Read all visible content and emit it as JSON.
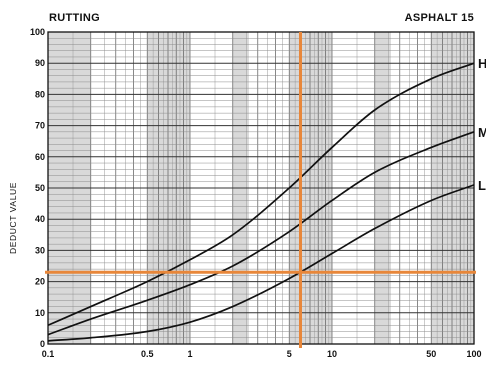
{
  "chart_data": {
    "type": "line",
    "title_left": "RUTTING",
    "title_right": "ASPHALT  15",
    "xlabel": "",
    "ylabel": "DEDUCT VALUE",
    "x_scale": "log",
    "xlim": [
      0.1,
      100
    ],
    "ylim": [
      0,
      100
    ],
    "x_ticks": [
      {
        "value": 0.1,
        "label": "0.1"
      },
      {
        "value": 0.5,
        "label": "0.5"
      },
      {
        "value": 1,
        "label": "1"
      },
      {
        "value": 5,
        "label": "5"
      },
      {
        "value": 10,
        "label": "10"
      },
      {
        "value": 50,
        "label": "50"
      },
      {
        "value": 100,
        "label": "100"
      }
    ],
    "y_ticks": [
      0,
      10,
      20,
      30,
      40,
      50,
      60,
      70,
      80,
      90,
      100
    ],
    "grid": true,
    "series": [
      {
        "name": "H",
        "color": "#111111",
        "x": [
          0.1,
          0.2,
          0.5,
          1,
          2,
          5,
          10,
          20,
          50,
          100
        ],
        "y": [
          6,
          12,
          20,
          27,
          35,
          50,
          63,
          75,
          85,
          90
        ]
      },
      {
        "name": "M",
        "color": "#111111",
        "x": [
          0.1,
          0.2,
          0.5,
          1,
          2,
          5,
          10,
          20,
          50,
          100
        ],
        "y": [
          3,
          8,
          14,
          19,
          25,
          36,
          46,
          55,
          63,
          68
        ]
      },
      {
        "name": "L",
        "color": "#111111",
        "x": [
          0.1,
          0.2,
          0.5,
          1,
          2,
          5,
          10,
          20,
          50,
          100
        ],
        "y": [
          1,
          2,
          4,
          7,
          12,
          21,
          29,
          37,
          46,
          51
        ]
      }
    ],
    "reference_lines": {
      "color": "#e8873a",
      "vertical_x": 6,
      "horizontal_y": 23
    }
  }
}
